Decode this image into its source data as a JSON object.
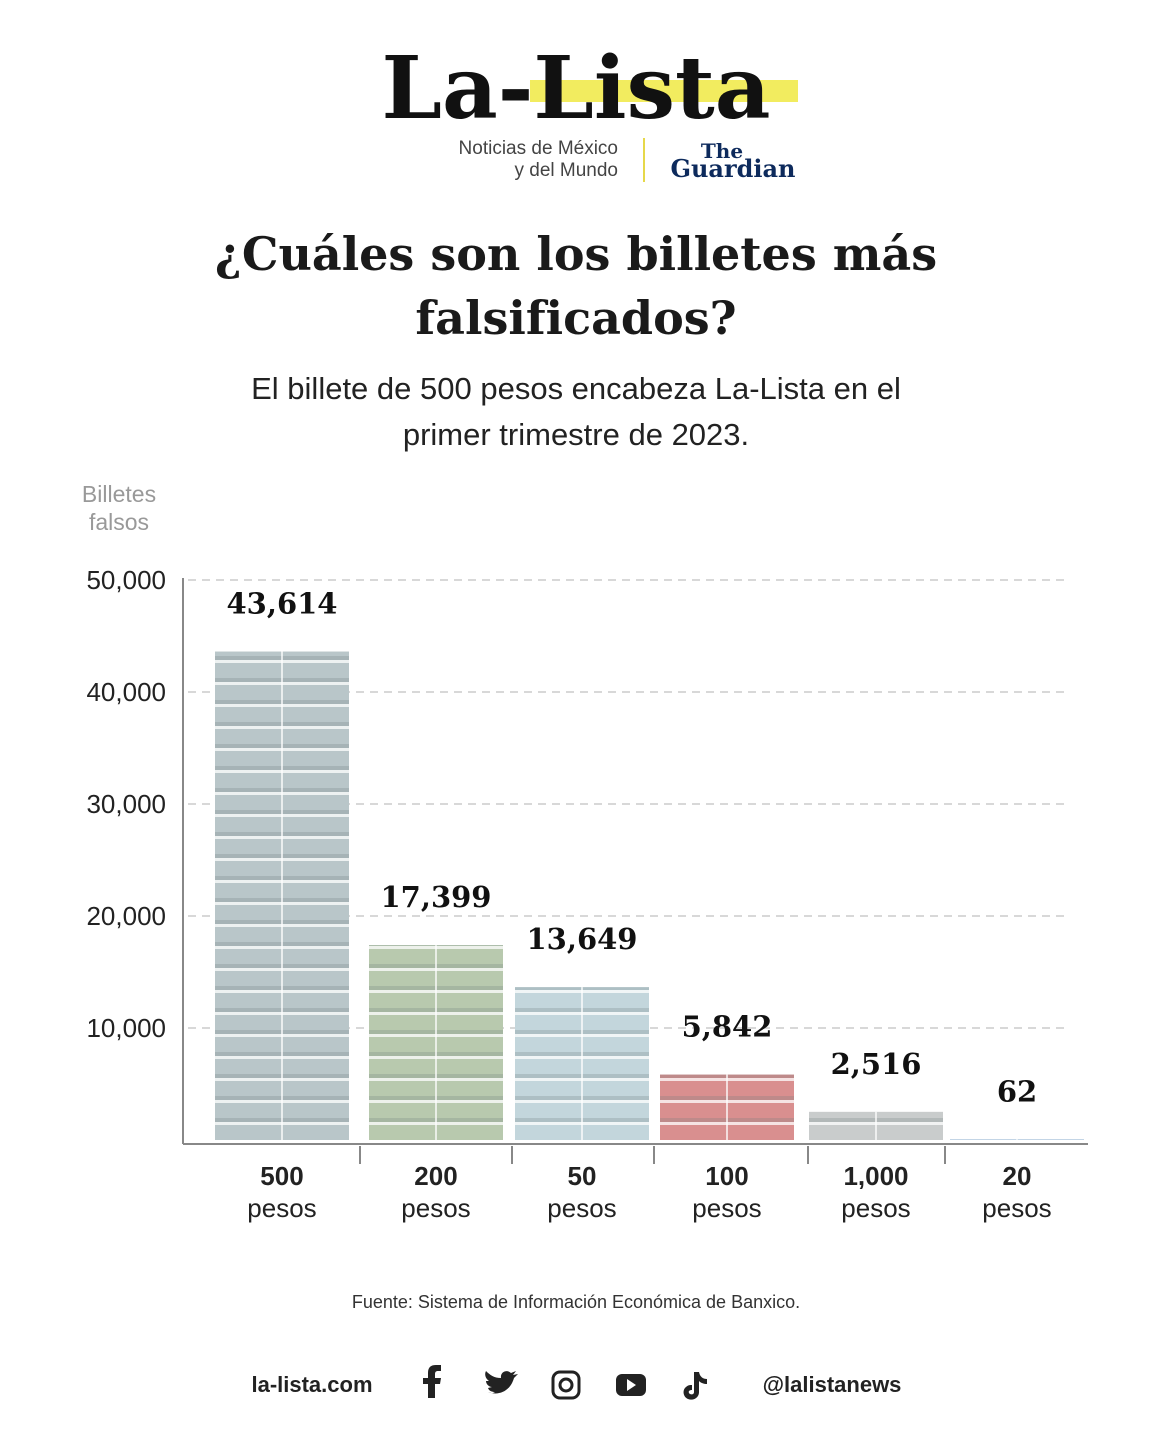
{
  "header": {
    "logo": "La-Lista",
    "tagline": [
      "Noticias de México",
      "y del Mundo"
    ],
    "partner": [
      "The",
      "Guardian"
    ]
  },
  "chart_data": {
    "type": "bar",
    "title": "¿Cuáles son los billetes más falsificados?",
    "subtitle": "El billete de 500 pesos encabeza La-Lista en el primer trimestre de 2023.",
    "y_label": "Billetes falsos",
    "categories": [
      "500 pesos",
      "200 pesos",
      "50 pesos",
      "100 pesos",
      "1,000 pesos",
      "20 pesos"
    ],
    "values": [
      43614,
      17399,
      13649,
      5842,
      2516,
      62
    ],
    "value_labels": [
      "43,614",
      "17,399",
      "13,649",
      "5,842",
      "2,516",
      "62"
    ],
    "colors": [
      "#b9c6c9",
      "#b8c9ae",
      "#c3d6dc",
      "#d98f8f",
      "#c9cccc",
      "#a9c3dc"
    ],
    "ylim": [
      0,
      50000
    ],
    "yticks": [
      {
        "value": 10000,
        "label": "10,000"
      },
      {
        "value": 20000,
        "label": "20,000"
      },
      {
        "value": 30000,
        "label": "30,000"
      },
      {
        "value": 40000,
        "label": "40,000"
      },
      {
        "value": 50000,
        "label": "50,000"
      }
    ],
    "grid": true,
    "source": "Fuente: Sistema de Información Económica de Banxico."
  },
  "footer": {
    "site": "la-lista.com",
    "handle": "@lalistanews"
  }
}
